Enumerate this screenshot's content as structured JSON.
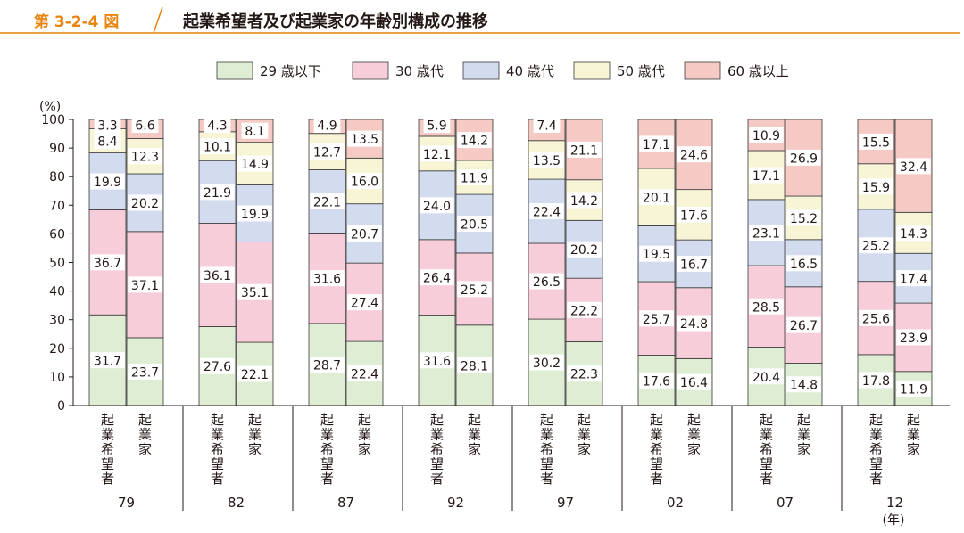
{
  "figure": {
    "number": "第 3-2-4 図",
    "title": "起業希望者及び起業家の年齢別構成の推移"
  },
  "colors": {
    "accent": "#e8830c",
    "age_29": "#dfedd4",
    "age_30": "#f6cdd9",
    "age_40": "#d3dbef",
    "age_50": "#f8f5d6",
    "age_60": "#f5c9c4",
    "outline": "#3a3a3a"
  },
  "chart_data": {
    "type": "bar",
    "stacked": true,
    "title": "起業希望者及び起業家の年齢別構成の推移",
    "ylabel": "(%)",
    "xlabel": "(年)",
    "ylim": [
      0,
      100
    ],
    "yticks": [
      0,
      10,
      20,
      30,
      40,
      50,
      60,
      70,
      80,
      90,
      100
    ],
    "legend_position": "top",
    "series_names": [
      "29 歳以下",
      "30 歳代",
      "40 歳代",
      "50 歳代",
      "60 歳以上"
    ],
    "bar_labels": [
      "起業希望者",
      "起業家"
    ],
    "groups": [
      {
        "year": "79",
        "bars": [
          [
            31.7,
            36.7,
            19.9,
            8.4,
            3.3
          ],
          [
            23.7,
            37.1,
            20.2,
            12.3,
            6.6
          ]
        ]
      },
      {
        "year": "82",
        "bars": [
          [
            27.6,
            36.1,
            21.9,
            10.1,
            4.3
          ],
          [
            22.1,
            35.1,
            19.9,
            14.9,
            8.1
          ]
        ]
      },
      {
        "year": "87",
        "bars": [
          [
            28.7,
            31.6,
            22.1,
            12.7,
            4.9
          ],
          [
            22.4,
            27.4,
            20.7,
            16.0,
            13.5
          ]
        ]
      },
      {
        "year": "92",
        "bars": [
          [
            31.6,
            26.4,
            24.0,
            12.1,
            5.9
          ],
          [
            28.1,
            25.2,
            20.5,
            11.9,
            14.2
          ]
        ]
      },
      {
        "year": "97",
        "bars": [
          [
            30.2,
            26.5,
            22.4,
            13.5,
            7.4
          ],
          [
            22.3,
            22.2,
            20.2,
            14.2,
            21.1
          ]
        ]
      },
      {
        "year": "02",
        "bars": [
          [
            17.6,
            25.7,
            19.5,
            20.1,
            17.1
          ],
          [
            16.4,
            24.8,
            16.7,
            17.6,
            24.6
          ]
        ]
      },
      {
        "year": "07",
        "bars": [
          [
            20.4,
            28.5,
            23.1,
            17.1,
            10.9
          ],
          [
            14.8,
            26.7,
            16.5,
            15.2,
            26.9
          ]
        ]
      },
      {
        "year": "12",
        "bars": [
          [
            17.8,
            25.6,
            25.2,
            15.9,
            15.5
          ],
          [
            11.9,
            23.9,
            17.4,
            14.3,
            32.4
          ]
        ]
      }
    ]
  }
}
